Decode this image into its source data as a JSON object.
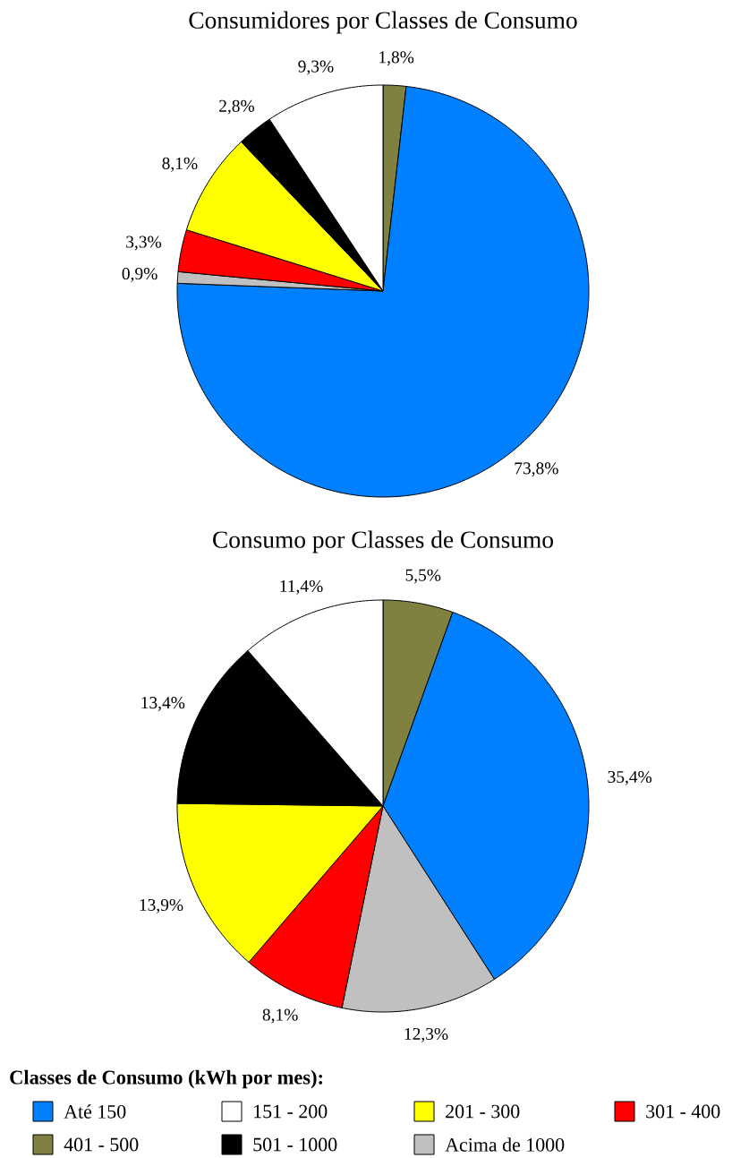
{
  "chart_data": [
    {
      "type": "pie",
      "title": "Consumidores por Classes de Consumo",
      "categories": [
        null,
        null,
        null,
        null,
        null,
        null,
        null
      ],
      "values": [
        1.8,
        73.8,
        0.9,
        3.3,
        8.1,
        2.8,
        9.3
      ],
      "colors": [
        "#808040",
        "#0080ff",
        "#c0c0c0",
        "#ff0000",
        "#ffff00",
        "#000000",
        "#ffffff"
      ],
      "value_labels": [
        "1,8%",
        "73,8%",
        "0,9%",
        "3,3%",
        "8,1%",
        "2,8%",
        "9,3%"
      ]
    },
    {
      "type": "pie",
      "title": "Consumo por Classes de Consumo",
      "categories": [
        "401 - 500",
        "Até 150",
        "Acima de 1000",
        "301 - 400",
        "201 - 300",
        "501 - 1000",
        "151 - 200"
      ],
      "values": [
        5.5,
        35.4,
        12.3,
        8.1,
        13.9,
        13.4,
        11.4
      ],
      "colors": [
        "#808040",
        "#0080ff",
        "#c0c0c0",
        "#ff0000",
        "#ffff00",
        "#000000",
        "#ffffff"
      ],
      "value_labels": [
        "5,5%",
        "35,4%",
        "12,3%",
        "8,1%",
        "13,9%",
        "13,4%",
        "11,4%"
      ],
      "legend": "bottom",
      "legend_title": "Classes de Consumo (kWh por mes):"
    }
  ]
}
